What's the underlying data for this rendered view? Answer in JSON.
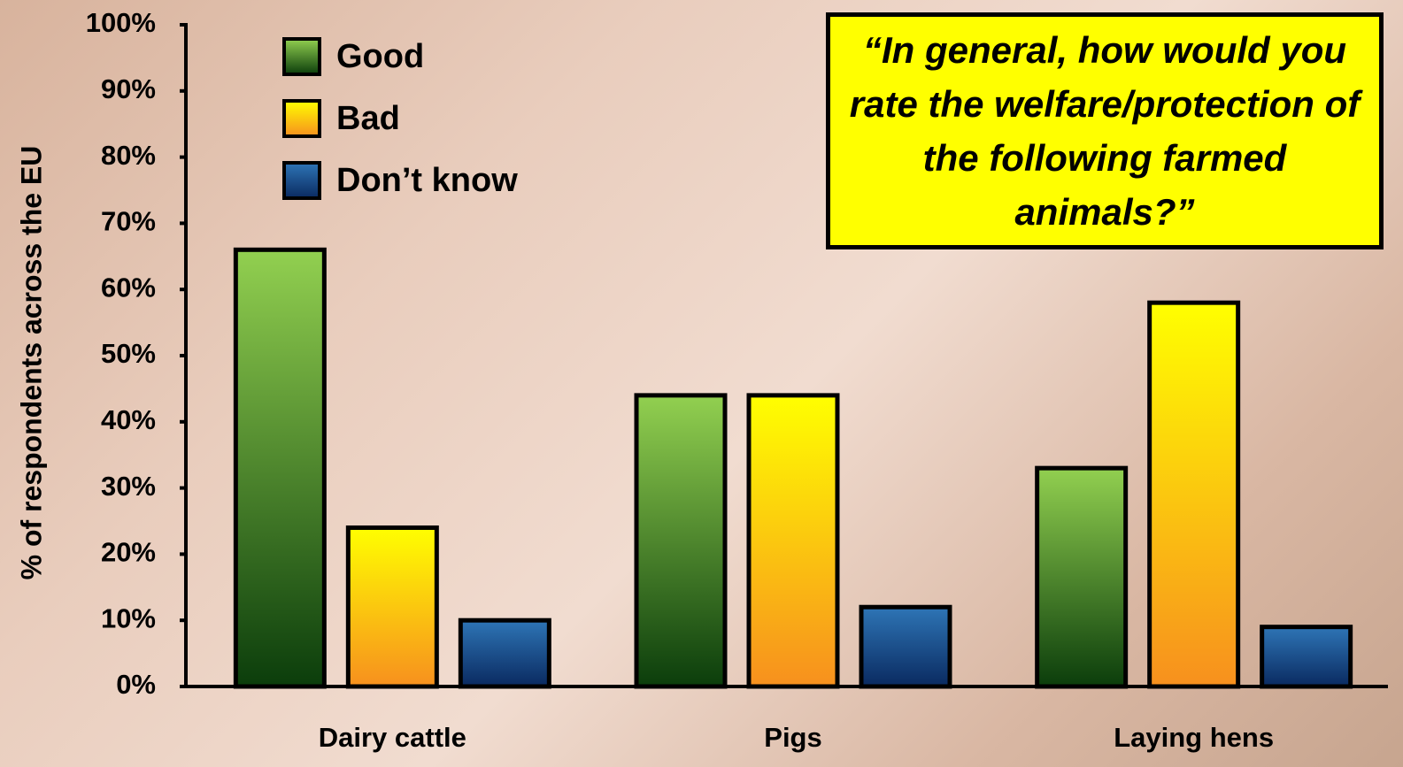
{
  "chart_data": {
    "type": "bar",
    "annotation": "“In general, how would you rate the welfare/protection of the following farmed animals?”",
    "y_label": "% of respondents across the EU",
    "categories": [
      "Dairy cattle",
      "Pigs",
      "Laying hens"
    ],
    "series": [
      {
        "name": "Good",
        "color": "#92d050",
        "gradient_end": "#0b3d0b",
        "values": [
          66,
          44,
          33
        ]
      },
      {
        "name": "Bad",
        "color": "#ffff00",
        "gradient_end": "#f7901e",
        "values": [
          24,
          44,
          58
        ]
      },
      {
        "name": "Don’t know",
        "color": "#2e75b6",
        "gradient_end": "#0a2a60",
        "values": [
          10,
          12,
          9
        ]
      }
    ],
    "ylim": [
      0,
      100
    ],
    "yticks": [
      {
        "value": 0,
        "label": "0%"
      },
      {
        "value": 10,
        "label": "10%"
      },
      {
        "value": 20,
        "label": "20%"
      },
      {
        "value": 30,
        "label": "30%"
      },
      {
        "value": 40,
        "label": "40%"
      },
      {
        "value": 50,
        "label": "50%"
      },
      {
        "value": 60,
        "label": "60%"
      },
      {
        "value": 70,
        "label": "70%"
      },
      {
        "value": 80,
        "label": "80%"
      },
      {
        "value": 90,
        "label": "90%"
      },
      {
        "value": 100,
        "label": "100%"
      }
    ],
    "grid": false,
    "legend": "top-left"
  }
}
